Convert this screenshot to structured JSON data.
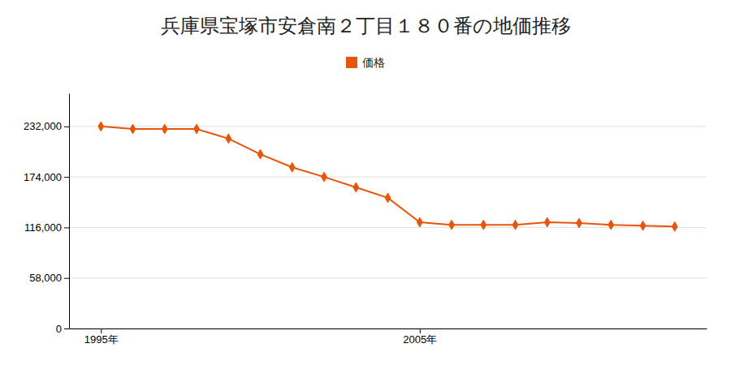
{
  "chart_data": {
    "type": "line",
    "title": "兵庫県宝塚市安倉南２丁目１８０番の地価推移",
    "x": [
      1995,
      1996,
      1997,
      1998,
      1999,
      2000,
      2001,
      2002,
      2003,
      2004,
      2005,
      2006,
      2007,
      2008,
      2009,
      2010,
      2011,
      2012,
      2013
    ],
    "series": [
      {
        "name": "価格",
        "color": "#e8540a",
        "marker": "diamond",
        "values": [
          232000,
          229000,
          229000,
          229000,
          218000,
          200000,
          185000,
          174000,
          162000,
          150000,
          122000,
          119000,
          119000,
          119000,
          122000,
          121000,
          119000,
          118000,
          117000
        ]
      }
    ],
    "xlim": [
      1994,
      2014
    ],
    "xticks": [
      {
        "value": 1995,
        "label": "1995年"
      },
      {
        "value": 2005,
        "label": "2005年"
      }
    ],
    "ylim": [
      0,
      270000
    ],
    "yticks": [
      0,
      {
        "value": 58000,
        "label": "58,000"
      },
      {
        "value": 116000,
        "label": "116,000"
      },
      {
        "value": 174000,
        "label": "174,000"
      },
      {
        "value": 232000,
        "label": "232,000"
      }
    ],
    "grid": true,
    "legend": "top"
  }
}
